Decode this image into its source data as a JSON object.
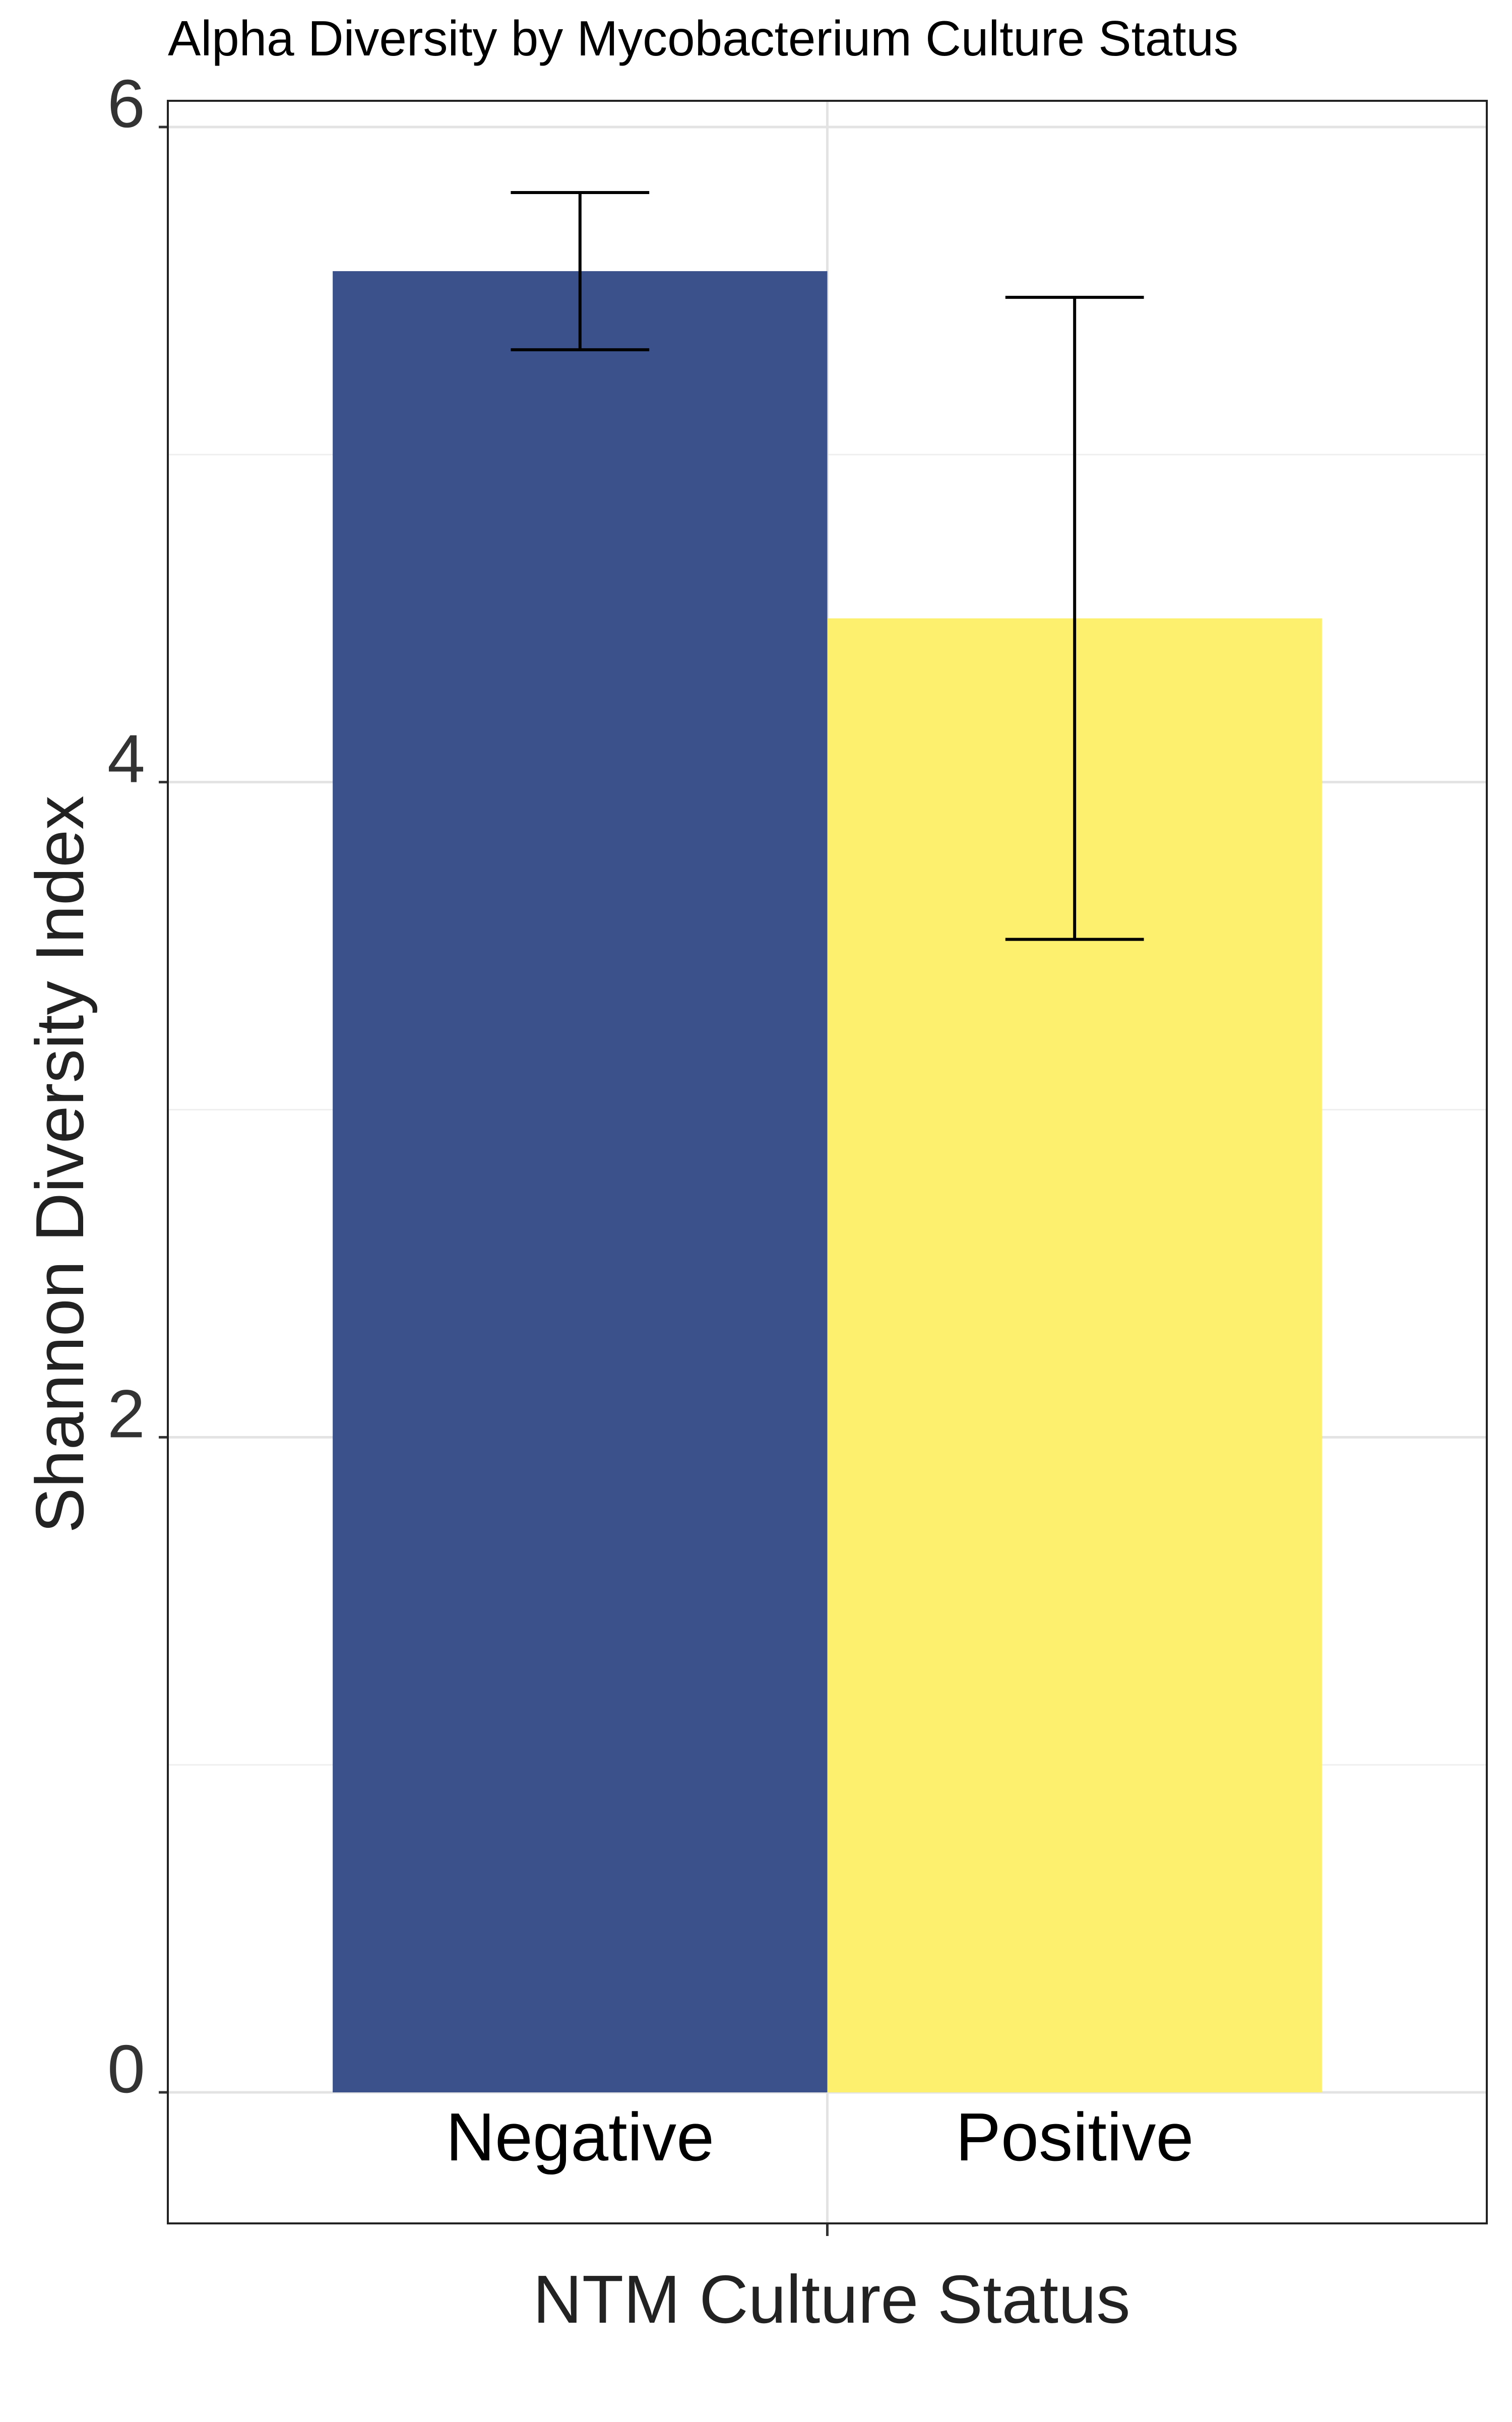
{
  "chart_data": {
    "type": "bar",
    "title": "Alpha Diversity by Mycobacterium Culture Status",
    "xlabel": "NTM Culture Status",
    "ylabel": "Shannon Diversity Index",
    "categories": [
      "Negative",
      "Positive"
    ],
    "values": [
      5.56,
      4.5
    ],
    "error_low": [
      5.32,
      3.52
    ],
    "error_high": [
      5.8,
      5.48
    ],
    "ylim": [
      -0.4,
      6.08
    ],
    "yticks": [
      0,
      2,
      4,
      6
    ],
    "ytick_labels": [
      "0",
      "2",
      "4",
      "6"
    ],
    "colors": [
      "#3b518b",
      "#fdf06f"
    ],
    "grid": true,
    "legend": "none"
  }
}
